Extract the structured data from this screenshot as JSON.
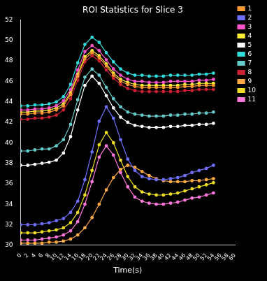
{
  "chart_data": {
    "type": "line",
    "title": "ROI Statistics for Slice 3",
    "x_label": "Time(s)",
    "x": [
      0,
      2,
      4,
      6,
      8,
      10,
      12,
      14,
      16,
      18,
      20,
      22,
      24,
      26,
      28,
      30,
      32,
      34,
      36,
      38,
      40,
      42,
      44,
      46,
      48,
      50,
      52,
      54
    ],
    "xlim": [
      0,
      60
    ],
    "xticks": [
      0,
      2,
      4,
      6,
      8,
      10,
      12,
      14,
      16,
      18,
      20,
      22,
      24,
      26,
      28,
      30,
      32,
      34,
      36,
      38,
      40,
      42,
      44,
      46,
      48,
      50,
      52,
      54,
      56,
      58,
      60
    ],
    "ylim": [
      30,
      52
    ],
    "yticks": [
      30,
      32,
      34,
      36,
      38,
      40,
      42,
      44,
      46,
      48,
      50,
      52
    ],
    "grid": false,
    "legend": "right",
    "marker": "circle",
    "series": [
      {
        "name": "1",
        "color": "#ff9933",
        "values": [
          42.8,
          42.8,
          42.9,
          42.9,
          43.0,
          43.2,
          43.6,
          44.7,
          46.5,
          48.2,
          48.8,
          48.3,
          47.5,
          46.6,
          46.0,
          45.7,
          45.5,
          45.4,
          45.4,
          45.4,
          45.4,
          45.4,
          45.4,
          45.5,
          45.5,
          45.6,
          45.6,
          45.6
        ]
      },
      {
        "name": "2",
        "color": "#7070ff",
        "values": [
          32.0,
          32.0,
          32.0,
          32.1,
          32.2,
          32.4,
          32.6,
          33.2,
          34.3,
          36.4,
          39.1,
          42.1,
          43.5,
          42.4,
          40.3,
          38.4,
          37.3,
          36.7,
          36.5,
          36.4,
          36.4,
          36.5,
          36.6,
          36.8,
          37.1,
          37.3,
          37.5,
          37.8
        ]
      },
      {
        "name": "3",
        "color": "#ff55cc",
        "values": [
          43.2,
          43.2,
          43.3,
          43.3,
          43.4,
          43.6,
          44.1,
          45.2,
          47.1,
          48.9,
          49.5,
          49.0,
          48.1,
          47.2,
          46.6,
          46.2,
          46.0,
          46.0,
          45.9,
          45.9,
          45.9,
          46.0,
          46.0,
          46.0,
          46.0,
          46.1,
          46.1,
          46.2
        ]
      },
      {
        "name": "4",
        "color": "#ffee33",
        "values": [
          43.0,
          43.0,
          43.1,
          43.1,
          43.2,
          43.4,
          43.8,
          44.9,
          46.7,
          48.4,
          49.0,
          48.5,
          47.7,
          46.8,
          46.2,
          45.9,
          45.7,
          45.6,
          45.6,
          45.6,
          45.6,
          45.6,
          45.6,
          45.7,
          45.7,
          45.8,
          45.8,
          45.8
        ]
      },
      {
        "name": "5",
        "color": "#ffffff",
        "values": [
          37.8,
          37.8,
          37.9,
          38.0,
          38.1,
          38.3,
          39.0,
          40.6,
          43.2,
          45.6,
          46.5,
          45.8,
          44.6,
          43.4,
          42.5,
          42.0,
          41.7,
          41.6,
          41.5,
          41.5,
          41.5,
          41.6,
          41.6,
          41.7,
          41.7,
          41.8,
          41.8,
          41.9
        ]
      },
      {
        "name": "6",
        "color": "#33dddd",
        "values": [
          43.6,
          43.6,
          43.7,
          43.7,
          43.8,
          44.0,
          44.5,
          45.7,
          47.8,
          49.6,
          50.3,
          49.8,
          48.8,
          47.9,
          47.2,
          46.8,
          46.6,
          46.6,
          46.5,
          46.5,
          46.5,
          46.6,
          46.6,
          46.6,
          46.6,
          46.7,
          46.7,
          46.8
        ]
      },
      {
        "name": "7",
        "color": "#66cccc",
        "values": [
          39.2,
          39.2,
          39.3,
          39.4,
          39.4,
          39.7,
          40.3,
          41.8,
          44.2,
          46.4,
          47.2,
          46.6,
          45.4,
          44.3,
          43.5,
          43.0,
          42.8,
          42.7,
          42.6,
          42.6,
          42.6,
          42.7,
          42.7,
          42.8,
          42.8,
          42.9,
          42.9,
          43.0
        ]
      },
      {
        "name": "8",
        "color": "#cc2233",
        "values": [
          42.3,
          42.3,
          42.4,
          42.4,
          42.5,
          42.7,
          43.2,
          44.3,
          46.1,
          47.9,
          48.5,
          48.0,
          47.1,
          46.3,
          45.7,
          45.3,
          45.1,
          45.0,
          45.0,
          45.0,
          45.0,
          45.0,
          45.0,
          45.1,
          45.1,
          45.2,
          45.2,
          45.2
        ]
      },
      {
        "name": "9",
        "color": "#ffaa44",
        "values": [
          30.2,
          30.2,
          30.2,
          30.2,
          30.3,
          30.3,
          30.4,
          30.6,
          31.0,
          31.7,
          32.7,
          34.0,
          35.4,
          36.6,
          37.4,
          37.8,
          37.6,
          37.2,
          36.8,
          36.5,
          36.3,
          36.2,
          36.2,
          36.2,
          36.3,
          36.3,
          36.4,
          36.5
        ]
      },
      {
        "name": "10",
        "color": "#eedd22",
        "values": [
          31.2,
          31.2,
          31.2,
          31.3,
          31.4,
          31.5,
          31.7,
          32.2,
          33.2,
          34.9,
          37.3,
          39.8,
          41.0,
          40.0,
          38.3,
          36.7,
          35.7,
          35.2,
          35.0,
          34.9,
          34.9,
          35.0,
          35.1,
          35.3,
          35.5,
          35.7,
          35.9,
          36.1
        ]
      },
      {
        "name": "11",
        "color": "#ff77dd",
        "values": [
          30.5,
          30.5,
          30.5,
          30.6,
          30.7,
          30.8,
          31.0,
          31.4,
          32.3,
          34.0,
          36.2,
          38.6,
          39.7,
          38.8,
          37.1,
          35.7,
          34.7,
          34.3,
          34.1,
          34.0,
          34.0,
          34.1,
          34.2,
          34.4,
          34.6,
          34.7,
          34.9,
          35.1
        ]
      }
    ]
  }
}
